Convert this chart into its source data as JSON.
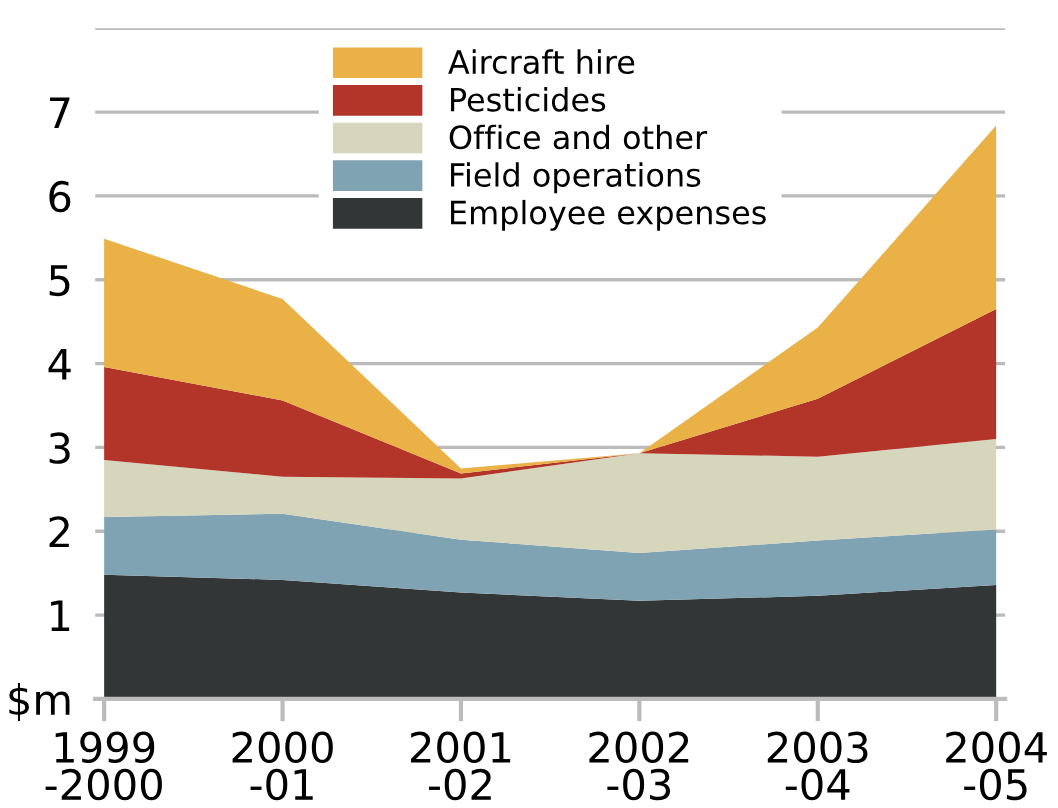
{
  "chart_data": {
    "type": "area",
    "stacked": true,
    "categories": [
      "1999\n-2000",
      "2000\n-01",
      "2001\n-02",
      "2002\n-03",
      "2003\n-04",
      "2004\n-05"
    ],
    "series": [
      {
        "name": "Employee expenses",
        "color": "#323637",
        "values": [
          1.48,
          1.42,
          1.27,
          1.17,
          1.23,
          1.36
        ]
      },
      {
        "name": "Field operations",
        "color": "#80a3b3",
        "values": [
          0.69,
          0.79,
          0.63,
          0.57,
          0.66,
          0.66
        ]
      },
      {
        "name": "Office and other",
        "color": "#d6d6bc",
        "values": [
          0.68,
          0.44,
          0.73,
          1.19,
          1.0,
          1.08
        ]
      },
      {
        "name": "Pesticides",
        "color": "#b3352a",
        "values": [
          1.11,
          0.91,
          0.06,
          0,
          0.69,
          1.55
        ]
      },
      {
        "name": "Aircraft hire",
        "color": "#e9b146",
        "values": [
          1.53,
          1.21,
          0.06,
          0,
          0.85,
          2.19
        ]
      }
    ],
    "ylim": [
      0,
      8
    ],
    "yticks": [
      {
        "value": 0,
        "label": "$m"
      },
      1,
      2,
      3,
      4,
      5,
      6,
      7,
      {
        "value": 8,
        "label": null
      }
    ],
    "grid": "y",
    "legend": "top"
  }
}
